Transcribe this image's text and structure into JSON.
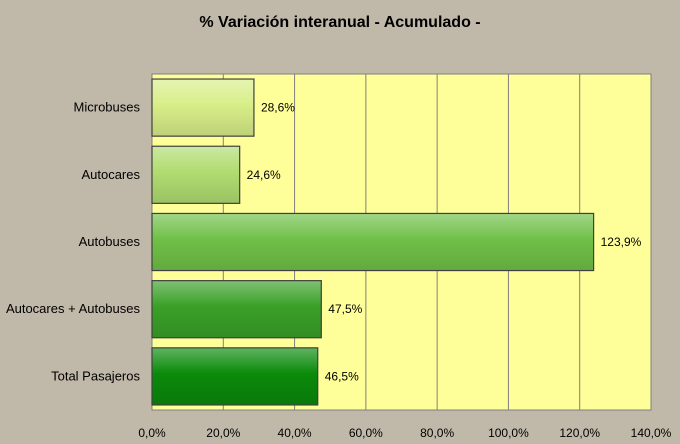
{
  "chart_data": {
    "type": "bar",
    "orientation": "horizontal",
    "title": "% Variación interanual - Acumulado -",
    "categories": [
      "Microbuses",
      "Autocares",
      "Autobuses",
      "Autocares + Autobuses",
      "Total Pasajeros"
    ],
    "values": [
      28.6,
      24.6,
      123.9,
      47.5,
      46.5
    ],
    "value_labels": [
      "28,6%",
      "24,6%",
      "123,9%",
      "47,5%",
      "46,5%"
    ],
    "bar_colors": [
      "#d8ee88",
      "#b0dc70",
      "#70c048",
      "#3aa028",
      "#0a8a0a"
    ],
    "xlim": [
      0,
      140
    ],
    "x_ticks": [
      0,
      20,
      40,
      60,
      80,
      100,
      120,
      140
    ],
    "x_tick_labels": [
      "0,0%",
      "20,0%",
      "40,0%",
      "60,0%",
      "80,0%",
      "100,0%",
      "120,0%",
      "140,0%"
    ],
    "xlabel": "",
    "ylabel": "",
    "grid": "vertical",
    "plot_background": "#ffff99",
    "page_background": "#c0b8a8",
    "legend": "none"
  }
}
